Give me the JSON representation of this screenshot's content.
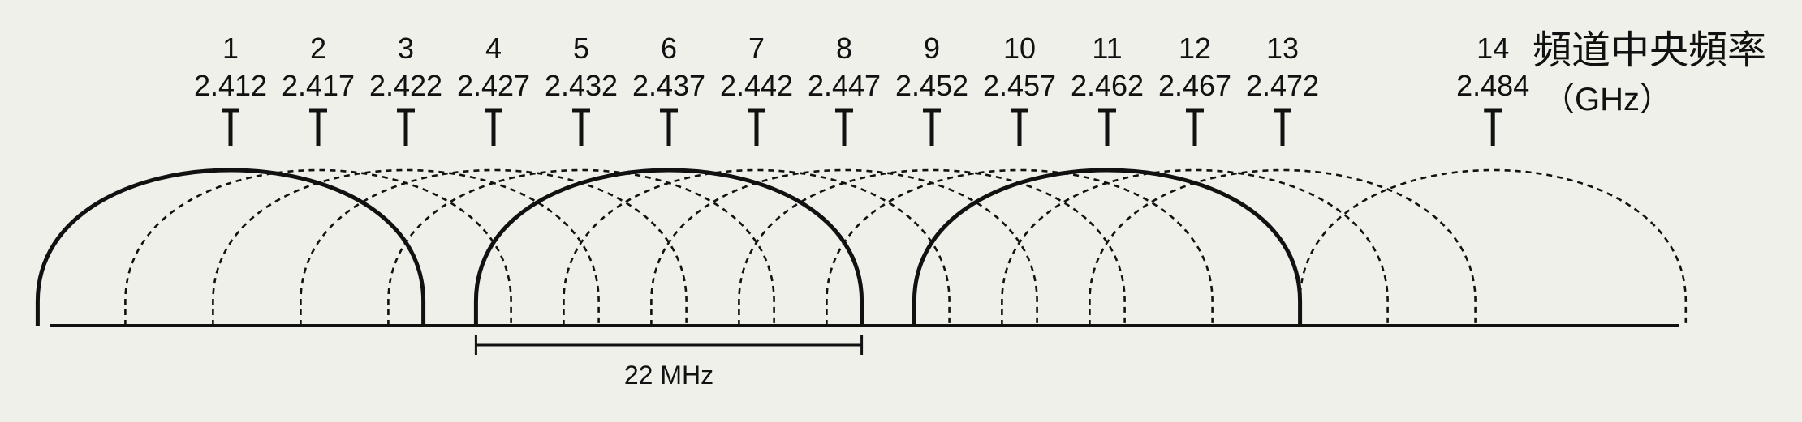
{
  "legend": {
    "title": "頻道中央頻率",
    "unit": "（GHz）"
  },
  "channels": [
    {
      "number": "1",
      "freq": "2.412",
      "value": 2.412
    },
    {
      "number": "2",
      "freq": "2.417",
      "value": 2.417
    },
    {
      "number": "3",
      "freq": "2.422",
      "value": 2.422
    },
    {
      "number": "4",
      "freq": "2.427",
      "value": 2.427
    },
    {
      "number": "5",
      "freq": "2.432",
      "value": 2.432
    },
    {
      "number": "6",
      "freq": "2.437",
      "value": 2.437
    },
    {
      "number": "7",
      "freq": "2.442",
      "value": 2.442
    },
    {
      "number": "8",
      "freq": "2.447",
      "value": 2.447
    },
    {
      "number": "9",
      "freq": "2.452",
      "value": 2.452
    },
    {
      "number": "10",
      "freq": "2.457",
      "value": 2.457
    },
    {
      "number": "11",
      "freq": "2.462",
      "value": 2.462
    },
    {
      "number": "12",
      "freq": "2.467",
      "value": 2.467
    },
    {
      "number": "13",
      "freq": "2.472",
      "value": 2.472
    },
    {
      "number": "14",
      "freq": "2.484",
      "value": 2.484
    }
  ],
  "non_overlapping": [
    "1",
    "6",
    "11"
  ],
  "bandwidth": {
    "label": "22 MHz",
    "mhz": 22,
    "channel": "6"
  }
}
